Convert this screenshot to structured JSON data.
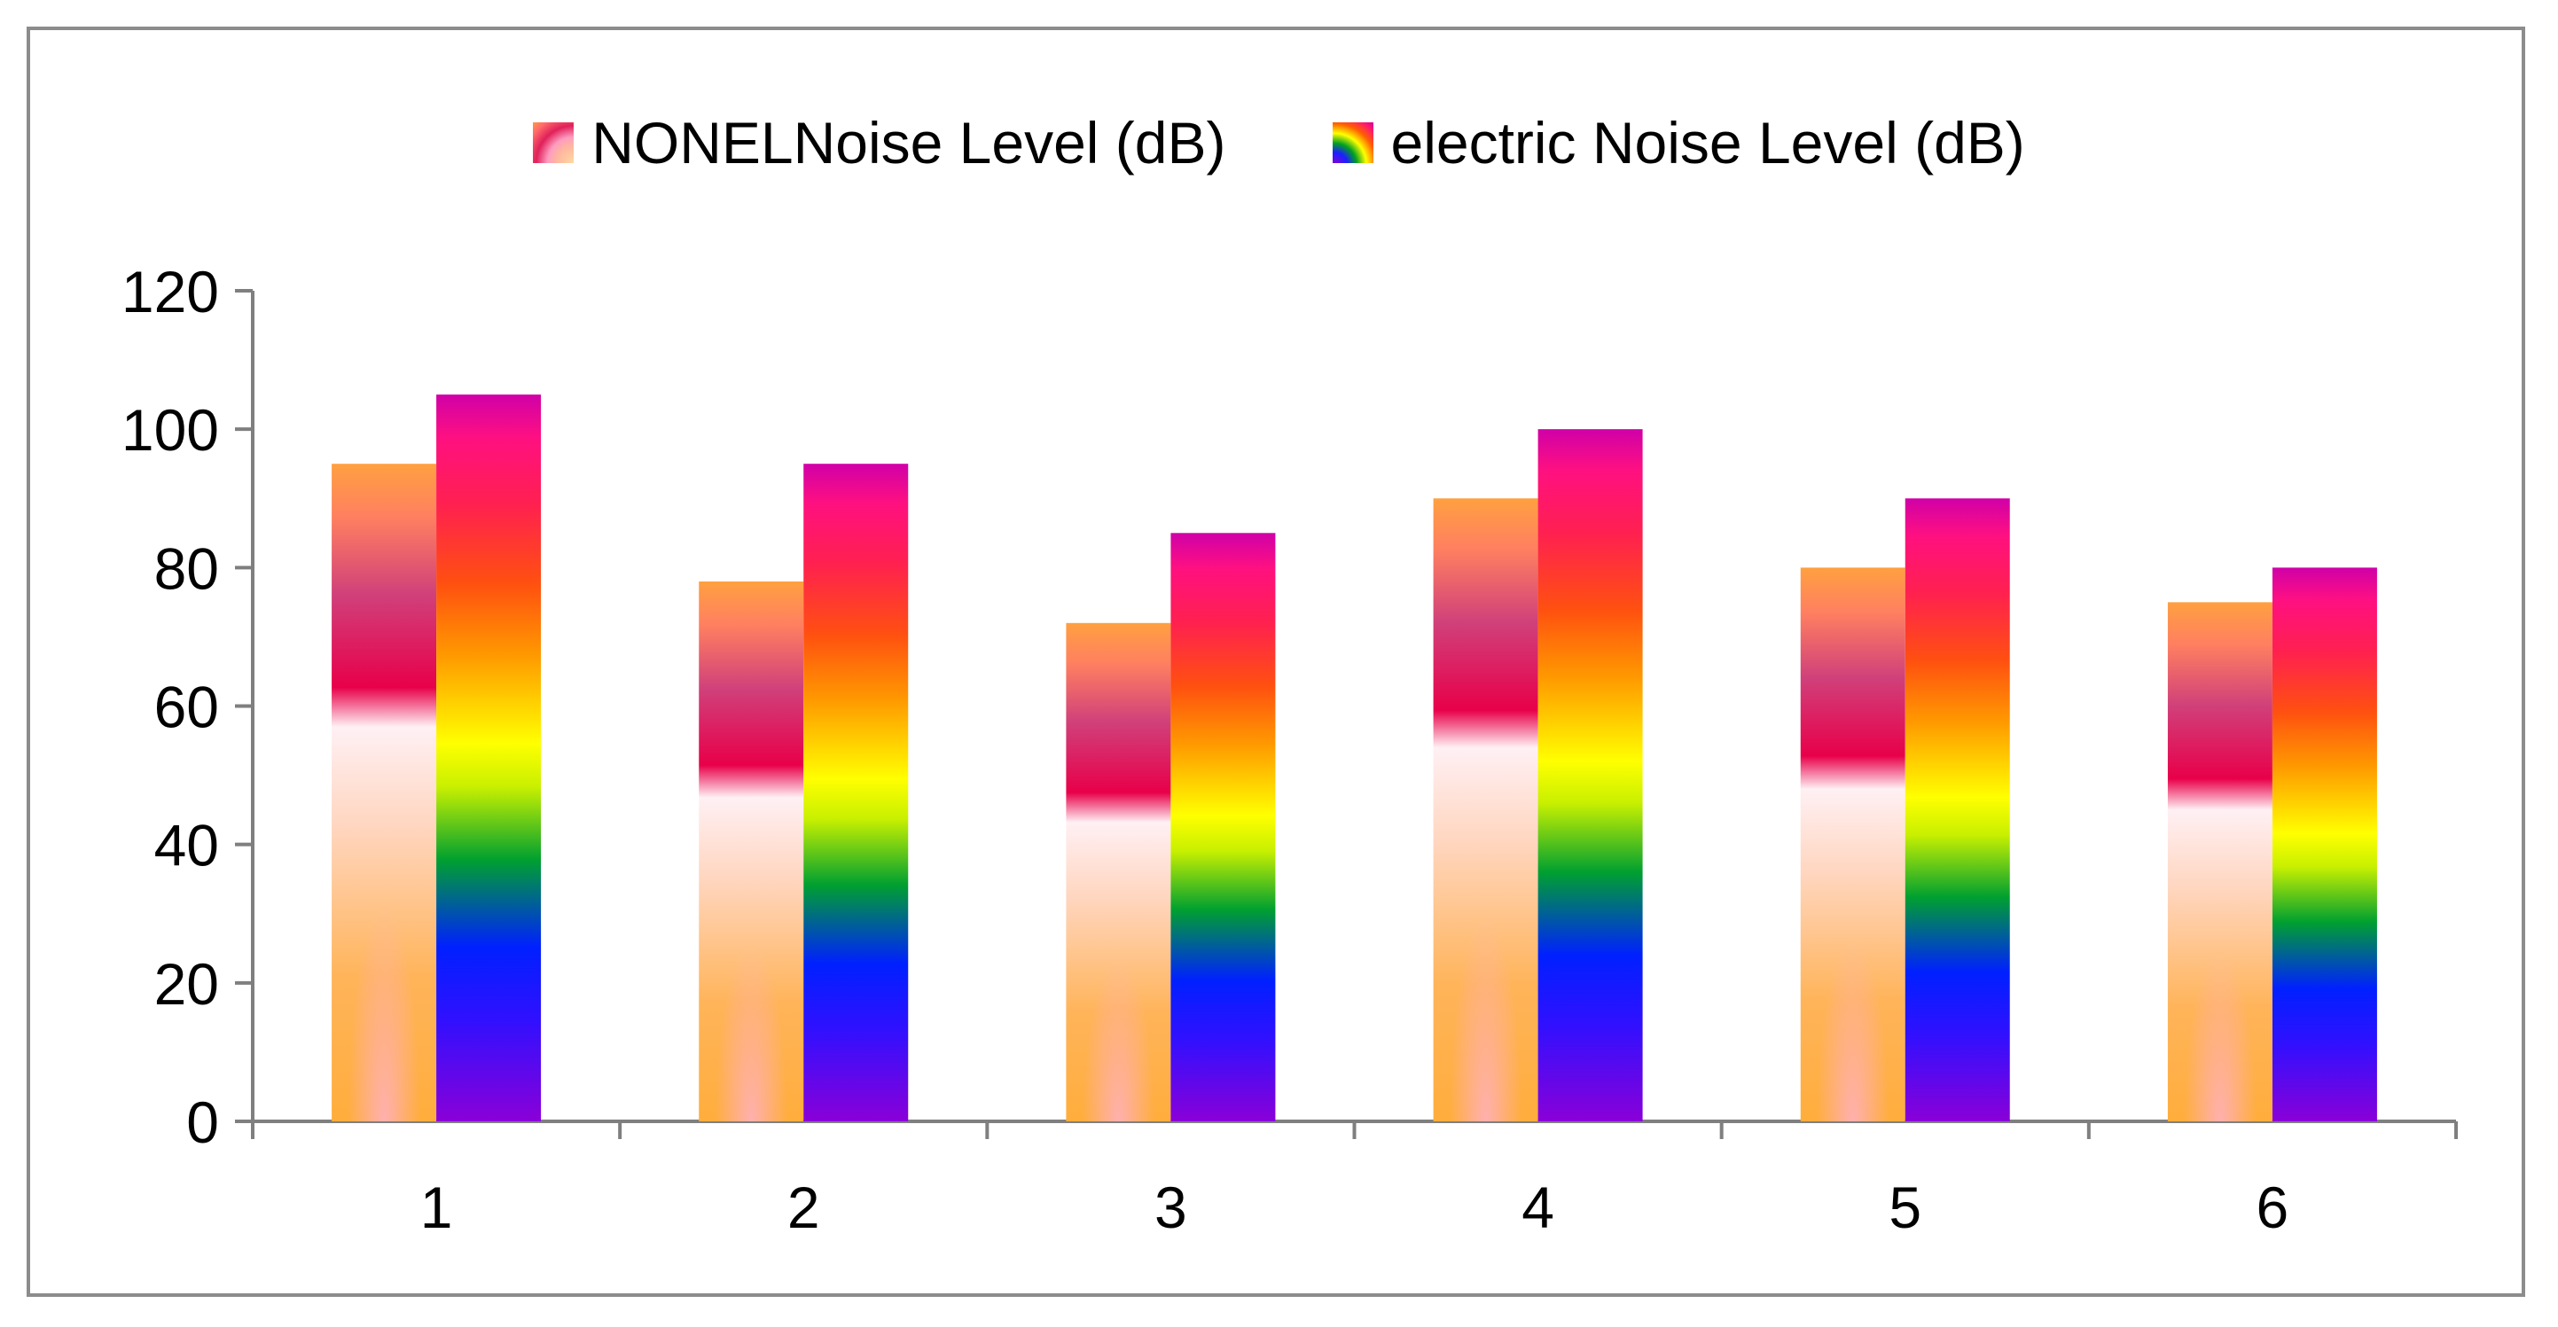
{
  "chart_data": {
    "type": "bar",
    "title": "",
    "xlabel": "",
    "ylabel": "",
    "categories": [
      "1",
      "2",
      "3",
      "4",
      "5",
      "6"
    ],
    "series": [
      {
        "name": "NONELNoise Level (dB)",
        "values": [
          95,
          78,
          72,
          90,
          80,
          75
        ],
        "color": "#ffae40"
      },
      {
        "name": "electric Noise Level (dB)",
        "values": [
          105,
          95,
          85,
          100,
          90,
          80
        ],
        "color": "#d000a0"
      }
    ],
    "ylim": [
      0,
      120
    ],
    "yticks": [
      "0",
      "20",
      "40",
      "60",
      "80",
      "100",
      "120"
    ],
    "grid": false,
    "legend_position": "top"
  }
}
